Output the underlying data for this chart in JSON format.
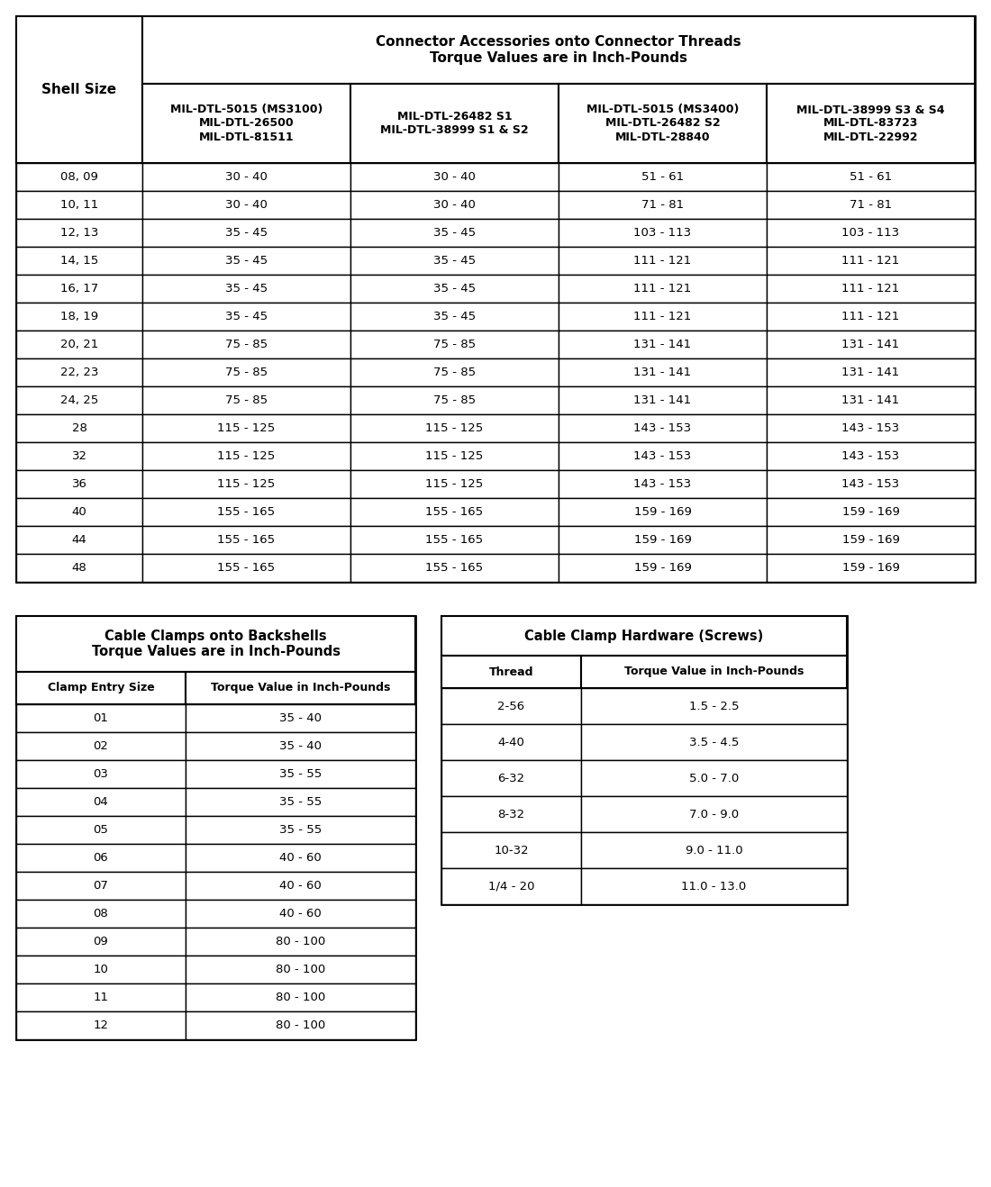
{
  "table1_title_line1": "Connector Accessories onto Connector Threads",
  "table1_title_line2": "Torque Values are in Inch-Pounds",
  "table1_col0_header": "Shell Size",
  "table1_headers": [
    "MIL-DTL-5015 (MS3100)\nMIL-DTL-26500\nMIL-DTL-81511",
    "MIL-DTL-26482 S1\nMIL-DTL-38999 S1 & S2",
    "MIL-DTL-5015 (MS3400)\nMIL-DTL-26482 S2\nMIL-DTL-28840",
    "MIL-DTL-38999 S3 & S4\nMIL-DTL-83723\nMIL-DTL-22992"
  ],
  "table1_rows": [
    [
      "08, 09",
      "30 - 40",
      "30 - 40",
      "51 - 61",
      "51 - 61"
    ],
    [
      "10, 11",
      "30 - 40",
      "30 - 40",
      "71 - 81",
      "71 - 81"
    ],
    [
      "12, 13",
      "35 - 45",
      "35 - 45",
      "103 - 113",
      "103 - 113"
    ],
    [
      "14, 15",
      "35 - 45",
      "35 - 45",
      "111 - 121",
      "111 - 121"
    ],
    [
      "16, 17",
      "35 - 45",
      "35 - 45",
      "111 - 121",
      "111 - 121"
    ],
    [
      "18, 19",
      "35 - 45",
      "35 - 45",
      "111 - 121",
      "111 - 121"
    ],
    [
      "20, 21",
      "75 - 85",
      "75 - 85",
      "131 - 141",
      "131 - 141"
    ],
    [
      "22, 23",
      "75 - 85",
      "75 - 85",
      "131 - 141",
      "131 - 141"
    ],
    [
      "24, 25",
      "75 - 85",
      "75 - 85",
      "131 - 141",
      "131 - 141"
    ],
    [
      "28",
      "115 - 125",
      "115 - 125",
      "143 - 153",
      "143 - 153"
    ],
    [
      "32",
      "115 - 125",
      "115 - 125",
      "143 - 153",
      "143 - 153"
    ],
    [
      "36",
      "115 - 125",
      "115 - 125",
      "143 - 153",
      "143 - 153"
    ],
    [
      "40",
      "155 - 165",
      "155 - 165",
      "159 - 169",
      "159 - 169"
    ],
    [
      "44",
      "155 - 165",
      "155 - 165",
      "159 - 169",
      "159 - 169"
    ],
    [
      "48",
      "155 - 165",
      "155 - 165",
      "159 - 169",
      "159 - 169"
    ]
  ],
  "table2_title": "Cable Clamps onto Backshells\nTorque Values are in Inch-Pounds",
  "table2_headers": [
    "Clamp Entry Size",
    "Torque Value in Inch-Pounds"
  ],
  "table2_rows": [
    [
      "01",
      "35 - 40"
    ],
    [
      "02",
      "35 - 40"
    ],
    [
      "03",
      "35 - 55"
    ],
    [
      "04",
      "35 - 55"
    ],
    [
      "05",
      "35 - 55"
    ],
    [
      "06",
      "40 - 60"
    ],
    [
      "07",
      "40 - 60"
    ],
    [
      "08",
      "40 - 60"
    ],
    [
      "09",
      "80 - 100"
    ],
    [
      "10",
      "80 - 100"
    ],
    [
      "11",
      "80 - 100"
    ],
    [
      "12",
      "80 - 100"
    ]
  ],
  "table3_title": "Cable Clamp Hardware (Screws)",
  "table3_headers": [
    "Thread",
    "Torque Value in Inch-Pounds"
  ],
  "table3_rows": [
    [
      "2-56",
      "1.5 - 2.5"
    ],
    [
      "4-40",
      "3.5 - 4.5"
    ],
    [
      "6-32",
      "5.0 - 7.0"
    ],
    [
      "8-32",
      "7.0 - 9.0"
    ],
    [
      "10-32",
      "9.0 - 11.0"
    ],
    [
      "1/4 - 20",
      "11.0 - 13.0"
    ]
  ],
  "bg_color": "#ffffff",
  "border_color": "#000000"
}
